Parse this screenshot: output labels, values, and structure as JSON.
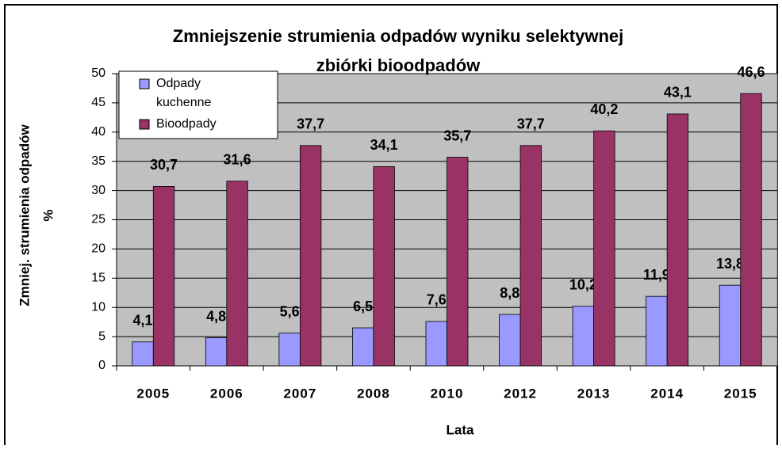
{
  "chart_data": {
    "type": "bar",
    "title": [
      "Zmniejszenie strumienia odpadów wyniku selektywnej",
      "zbiórki bioodpadów"
    ],
    "ylabel": [
      "Zmniej. strumienia odpadów",
      "%"
    ],
    "xlabel": "Lata",
    "categories": [
      "2005",
      "2006",
      "2007",
      "2008",
      "2010",
      "2012",
      "2013",
      "2014",
      "2015"
    ],
    "series": [
      {
        "name": "Odpady kuchenne",
        "color": "#9999ff",
        "values": [
          4.1,
          4.8,
          5.6,
          6.5,
          7.6,
          8.8,
          10.2,
          11.9,
          13.8
        ],
        "value_labels": [
          "4,1",
          "4,8",
          "5,6",
          "6,5",
          "7,6",
          "8,8",
          "10,2",
          "11,9",
          "13,8"
        ]
      },
      {
        "name": "Bioodpady",
        "color": "#993366",
        "values": [
          30.7,
          31.6,
          37.7,
          34.1,
          35.7,
          37.7,
          40.2,
          43.1,
          46.6
        ],
        "value_labels": [
          "30,7",
          "31,6",
          "37,7",
          "34,1",
          "35,7",
          "37,7",
          "40,2",
          "43,1",
          "46,6"
        ]
      }
    ],
    "ylim": [
      0,
      50
    ],
    "yticks": [
      0,
      5,
      10,
      15,
      20,
      25,
      30,
      35,
      40,
      45,
      50
    ],
    "grid": true,
    "legend": "upper left"
  }
}
